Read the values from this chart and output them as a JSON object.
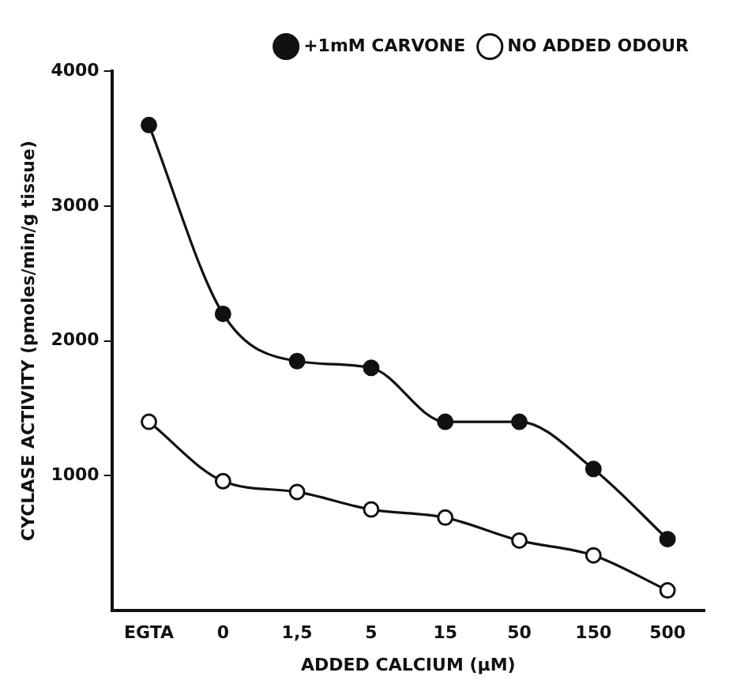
{
  "chart_data": {
    "type": "line",
    "xlabel": "ADDED CALCIUM (µM)",
    "ylabel": "CYCLASE ACTIVITY (pmoles/min/g tissue)",
    "categories": [
      "EGTA",
      "0",
      "1,5",
      "5",
      "15",
      "50",
      "150",
      "500"
    ],
    "series": [
      {
        "name": "+1mM CARVONE",
        "color": "#111111",
        "values": [
          3600,
          2200,
          1850,
          1800,
          1400,
          1400,
          1050,
          530
        ]
      },
      {
        "name": "NO ADDED ODOUR",
        "color": "#111111",
        "values": [
          1400,
          960,
          880,
          750,
          690,
          520,
          410,
          150
        ]
      }
    ],
    "ylim": [
      0,
      4000
    ],
    "yticks": [
      1000,
      2000,
      3000,
      4000
    ],
    "grid": false,
    "legend": "top right",
    "marker": "circle",
    "line_style": "solid"
  }
}
